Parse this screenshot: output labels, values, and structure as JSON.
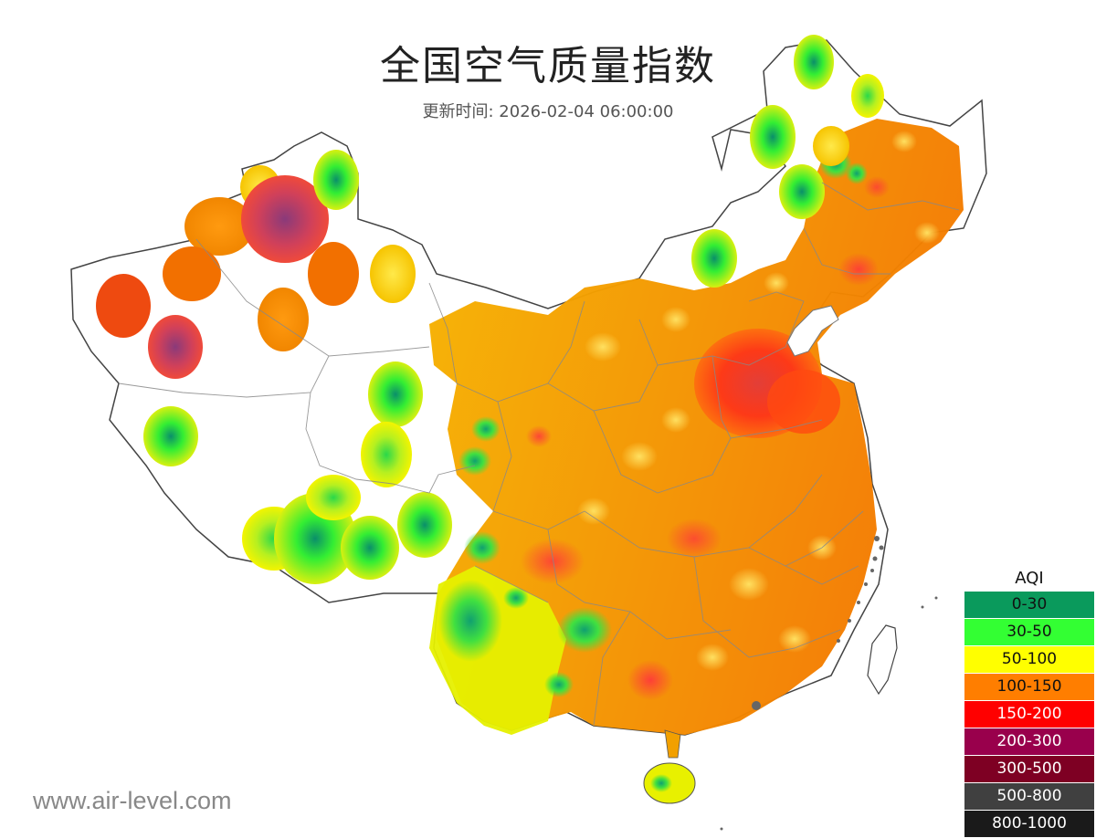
{
  "title": "全国空气质量指数",
  "subtitle": "更新时间: 2026-02-04 06:00:00",
  "watermark": "www.air-level.com",
  "legend": {
    "title": "AQI",
    "items": [
      {
        "label": "0-30",
        "color": "#0a9a5c",
        "text": "#111"
      },
      {
        "label": "30-50",
        "color": "#33ff33",
        "text": "#111"
      },
      {
        "label": "50-100",
        "color": "#ffff00",
        "text": "#111"
      },
      {
        "label": "100-150",
        "color": "#ff7e00",
        "text": "#111"
      },
      {
        "label": "150-200",
        "color": "#ff0000",
        "text": "#fff"
      },
      {
        "label": "200-300",
        "color": "#99004c",
        "text": "#fff"
      },
      {
        "label": "300-500",
        "color": "#7e0023",
        "text": "#fff"
      },
      {
        "label": "500-800",
        "color": "#404040",
        "text": "#fff"
      },
      {
        "label": "800-1000",
        "color": "#1a1a1a",
        "text": "#fff"
      }
    ]
  }
}
